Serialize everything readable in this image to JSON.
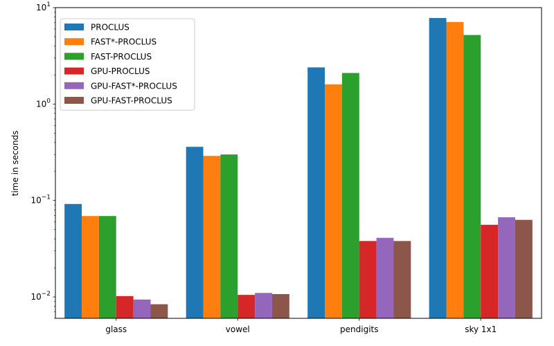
{
  "chart_data": {
    "type": "bar",
    "title": "",
    "xlabel": "",
    "ylabel": "time in seconds",
    "yscale": "log",
    "ylim": [
      0.006,
      10
    ],
    "y_ticks": [
      {
        "value": 0.01,
        "base": "10",
        "exp": "−2"
      },
      {
        "value": 0.1,
        "base": "10",
        "exp": "−1"
      },
      {
        "value": 1,
        "base": "10",
        "exp": "0"
      },
      {
        "value": 10,
        "base": "10",
        "exp": "1"
      }
    ],
    "categories": [
      "glass",
      "vowel",
      "pendigits",
      "sky 1x1"
    ],
    "legend_position": "top-left",
    "grid": false,
    "series": [
      {
        "name": "PROCLUS",
        "color": "#1f77b4",
        "values": [
          0.092,
          0.36,
          2.4,
          7.8
        ]
      },
      {
        "name": "FAST*-PROCLUS",
        "color": "#ff7f0e",
        "values": [
          0.069,
          0.29,
          1.6,
          7.1
        ]
      },
      {
        "name": "FAST-PROCLUS",
        "color": "#2ca02c",
        "values": [
          0.069,
          0.3,
          2.1,
          5.2
        ]
      },
      {
        "name": "GPU-PROCLUS",
        "color": "#d62728",
        "values": [
          0.0102,
          0.0105,
          0.038,
          0.056
        ]
      },
      {
        "name": "GPU-FAST*-PROCLUS",
        "color": "#9467bd",
        "values": [
          0.0094,
          0.011,
          0.041,
          0.067
        ]
      },
      {
        "name": "GPU-FAST-PROCLUS",
        "color": "#8c564b",
        "values": [
          0.0084,
          0.0107,
          0.038,
          0.063
        ]
      }
    ]
  }
}
